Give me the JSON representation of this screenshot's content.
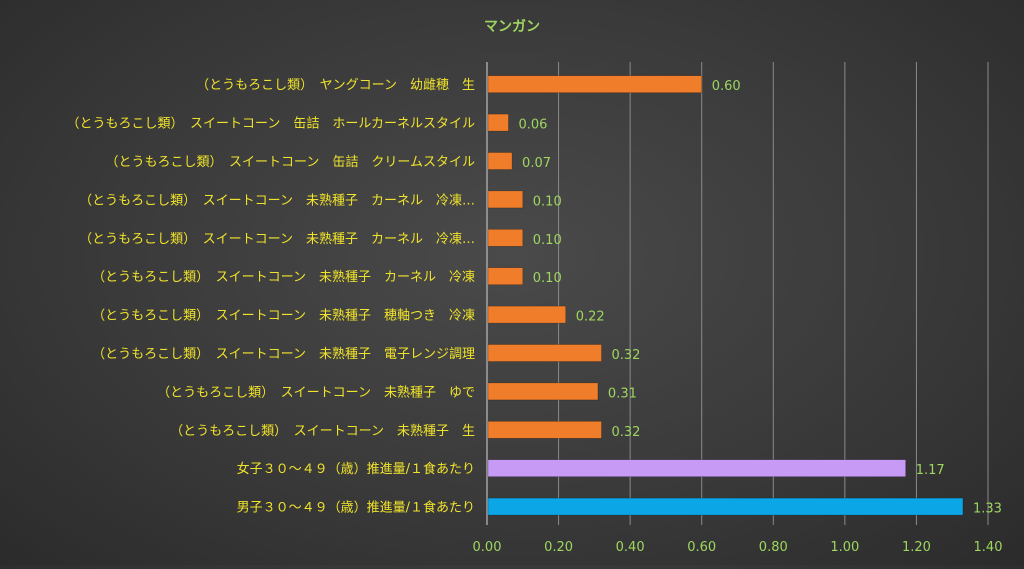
{
  "chart_data": {
    "type": "bar",
    "orientation": "horizontal",
    "title": "マンガン",
    "xlim": [
      0,
      1.4
    ],
    "xticks": [
      "0.00",
      "0.20",
      "0.40",
      "0.60",
      "0.80",
      "1.00",
      "1.20",
      "1.40"
    ],
    "grid": true,
    "legend": "none",
    "categories": [
      "（とうもろこし類）　ヤングコーン　幼雌穂　生",
      "（とうもろこし類）　スイートコーン　缶詰　ホールカーネルスタイル",
      "（とうもろこし類）　スイートコーン　缶詰　クリームスタイル",
      "（とうもろこし類）　スイートコーン　未熟種子　カーネル　冷凍…",
      "（とうもろこし類）　スイートコーン　未熟種子　カーネル　冷凍…",
      "（とうもろこし類）　スイートコーン　未熟種子　カーネル　冷凍",
      "（とうもろこし類）　スイートコーン　未熟種子　穂軸つき　冷凍",
      "（とうもろこし類）　スイートコーン　未熟種子　電子レンジ調理",
      "（とうもろこし類）　スイートコーン　未熟種子　ゆで",
      "（とうもろこし類）　スイートコーン　未熟種子　生",
      "女子３０～４９（歳）推進量/１食あたり",
      "男子３０～４９（歳）推進量/１食あたり"
    ],
    "values": [
      0.6,
      0.06,
      0.07,
      0.1,
      0.1,
      0.1,
      0.22,
      0.32,
      0.31,
      0.32,
      1.17,
      1.33
    ],
    "value_labels": [
      "0.60",
      "0.06",
      "0.07",
      "0.10",
      "0.10",
      "0.10",
      "0.22",
      "0.32",
      "0.31",
      "0.32",
      "1.17",
      "1.33"
    ],
    "bar_colors": [
      "#f07d2a",
      "#f07d2a",
      "#f07d2a",
      "#f07d2a",
      "#f07d2a",
      "#f07d2a",
      "#f07d2a",
      "#f07d2a",
      "#f07d2a",
      "#f07d2a",
      "#c79af5",
      "#0aa6e6"
    ],
    "colors": {
      "title": "#9ed660",
      "category_label": "#f0e32b",
      "value_label": "#9ed660",
      "tick_label": "#9ed660",
      "grid": "#8a8a8a",
      "axis": "#bdbdbd"
    }
  }
}
